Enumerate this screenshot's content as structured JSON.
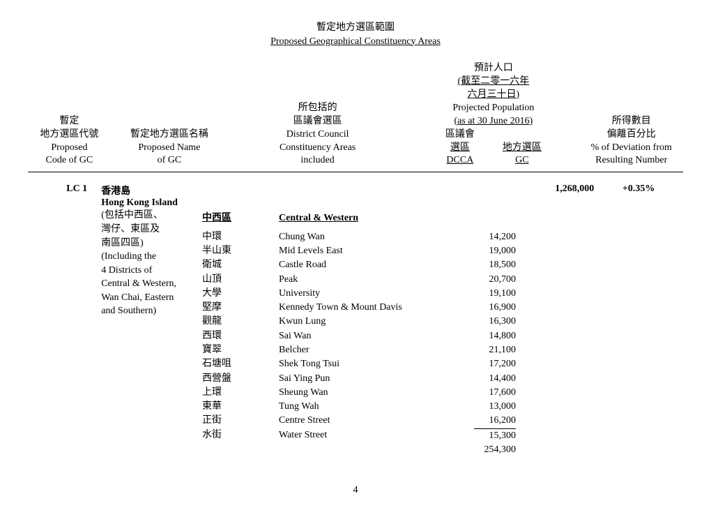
{
  "title": {
    "zh": "暫定地方選區範圍",
    "en": "Proposed Geographical Constituency Areas"
  },
  "headers": {
    "code": {
      "zh1": "暫定",
      "zh2": "地方選區代號",
      "en1": "Proposed",
      "en2": "Code of GC"
    },
    "name": {
      "zh1": "暫定地方選區名稱",
      "en1": "Proposed Name",
      "en2": "of GC"
    },
    "dcca": {
      "zh1": "所包括的",
      "zh2": "區議會選區",
      "en1": "District Council",
      "en2": "Constituency Areas",
      "en3": "included"
    },
    "pop": {
      "zh1": "預計人口",
      "zh2": "(截至二零一六年",
      "zh3": "六月三十日)",
      "en1": "Projected Population",
      "en2": "(as at 30 June 2016)",
      "sub_zh1": "區議會",
      "sub_zh2": "選區",
      "sub_zh3": "地方選區",
      "sub_en1": "DCCA",
      "sub_en2": "GC"
    },
    "dev": {
      "zh1": "所得數目",
      "zh2": "偏離百分比",
      "en1": "% of Deviation from",
      "en2": "Resulting Number"
    }
  },
  "row": {
    "code": "LC 1",
    "name_zh": "香港島",
    "name_en": "Hong Kong Island",
    "desc_zh1": "(包括中西區、",
    "desc_zh2": "灣仔、東區及",
    "desc_zh3": "南區四區)",
    "desc_en1": "(Including the",
    "desc_en2": "4 Districts of",
    "desc_en3": "Central & Western,",
    "desc_en4": "Wan Chai, Eastern",
    "desc_en5": "and Southern)",
    "gc_pop": "1,268,000",
    "deviation": "+0.35%",
    "district": {
      "zh": "中西區",
      "en": "Central & Western"
    },
    "areas": [
      {
        "zh": "中環",
        "en": "Chung Wan",
        "val": "14,200"
      },
      {
        "zh": "半山東",
        "en": "Mid Levels East",
        "val": "19,000"
      },
      {
        "zh": "衛城",
        "en": "Castle Road",
        "val": "18,500"
      },
      {
        "zh": "山頂",
        "en": "Peak",
        "val": "20,700"
      },
      {
        "zh": "大學",
        "en": "University",
        "val": "19,100"
      },
      {
        "zh": "堅摩",
        "en": "Kennedy Town & Mount Davis",
        "val": "16,900"
      },
      {
        "zh": "觀龍",
        "en": "Kwun Lung",
        "val": "16,300"
      },
      {
        "zh": "西環",
        "en": "Sai Wan",
        "val": "14,800"
      },
      {
        "zh": "寶翠",
        "en": "Belcher",
        "val": "21,100"
      },
      {
        "zh": "石塘咀",
        "en": "Shek Tong Tsui",
        "val": "17,200"
      },
      {
        "zh": "西營盤",
        "en": "Sai Ying Pun",
        "val": "14,400"
      },
      {
        "zh": "上環",
        "en": "Sheung Wan",
        "val": "17,600"
      },
      {
        "zh": "東華",
        "en": "Tung Wah",
        "val": "13,000"
      },
      {
        "zh": "正街",
        "en": "Centre Street",
        "val": "16,200"
      },
      {
        "zh": "水街",
        "en": "Water Street",
        "val": "15,300"
      }
    ],
    "subtotal": "254,300"
  },
  "page": "4"
}
